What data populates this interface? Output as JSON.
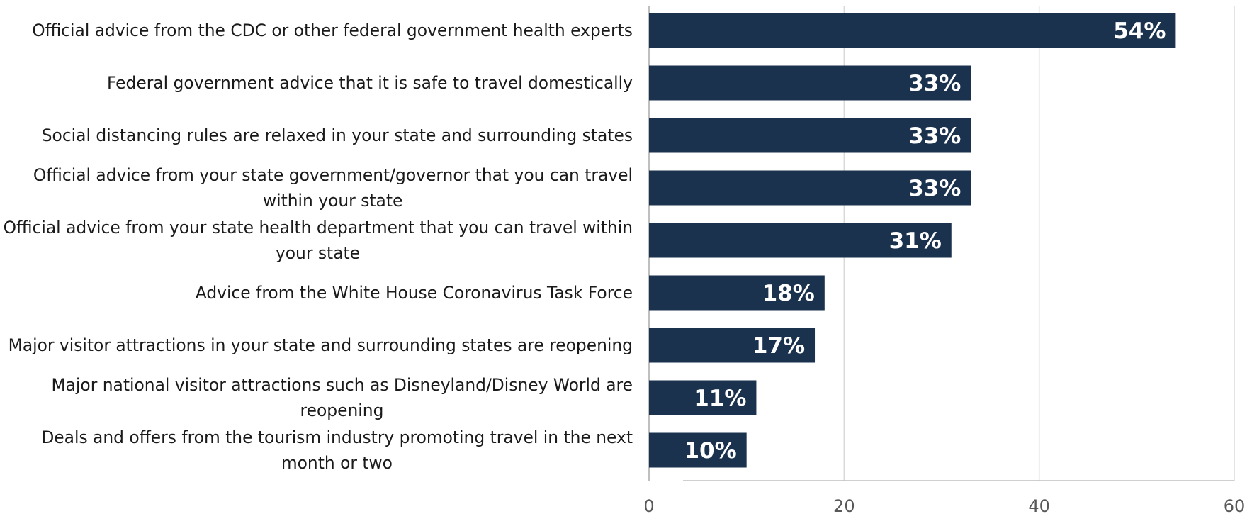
{
  "chart_data": {
    "type": "bar",
    "orientation": "horizontal",
    "categories": [
      [
        "Official advice from the CDC or other federal government health experts"
      ],
      [
        "Federal government advice that it is safe to travel domestically"
      ],
      [
        "Social distancing rules are relaxed in your state and surrounding states"
      ],
      [
        "Official advice from your state government/governor that you can travel",
        "within your state"
      ],
      [
        "Official advice from your state health department that you can travel within",
        "your state"
      ],
      [
        "Advice from the White House Coronavirus Task Force"
      ],
      [
        "Major visitor attractions in your state and surrounding states are reopening"
      ],
      [
        "Major national visitor attractions such as Disneyland/Disney World are",
        "reopening"
      ],
      [
        "Deals and offers from the tourism industry promoting travel in the next",
        "month or two"
      ]
    ],
    "values": [
      54,
      33,
      33,
      33,
      31,
      18,
      17,
      11,
      10
    ],
    "data_labels": [
      "54%",
      "33%",
      "33%",
      "33%",
      "31%",
      "18%",
      "17%",
      "11%",
      "10%"
    ],
    "xlim": [
      0,
      60
    ],
    "xticks": [
      0,
      20,
      40,
      60
    ],
    "grid": "vertical",
    "legend": "none",
    "colors": {
      "bar": "#1b324f",
      "grid": "#d9d9d9",
      "axis": "#bfbfbf"
    }
  }
}
